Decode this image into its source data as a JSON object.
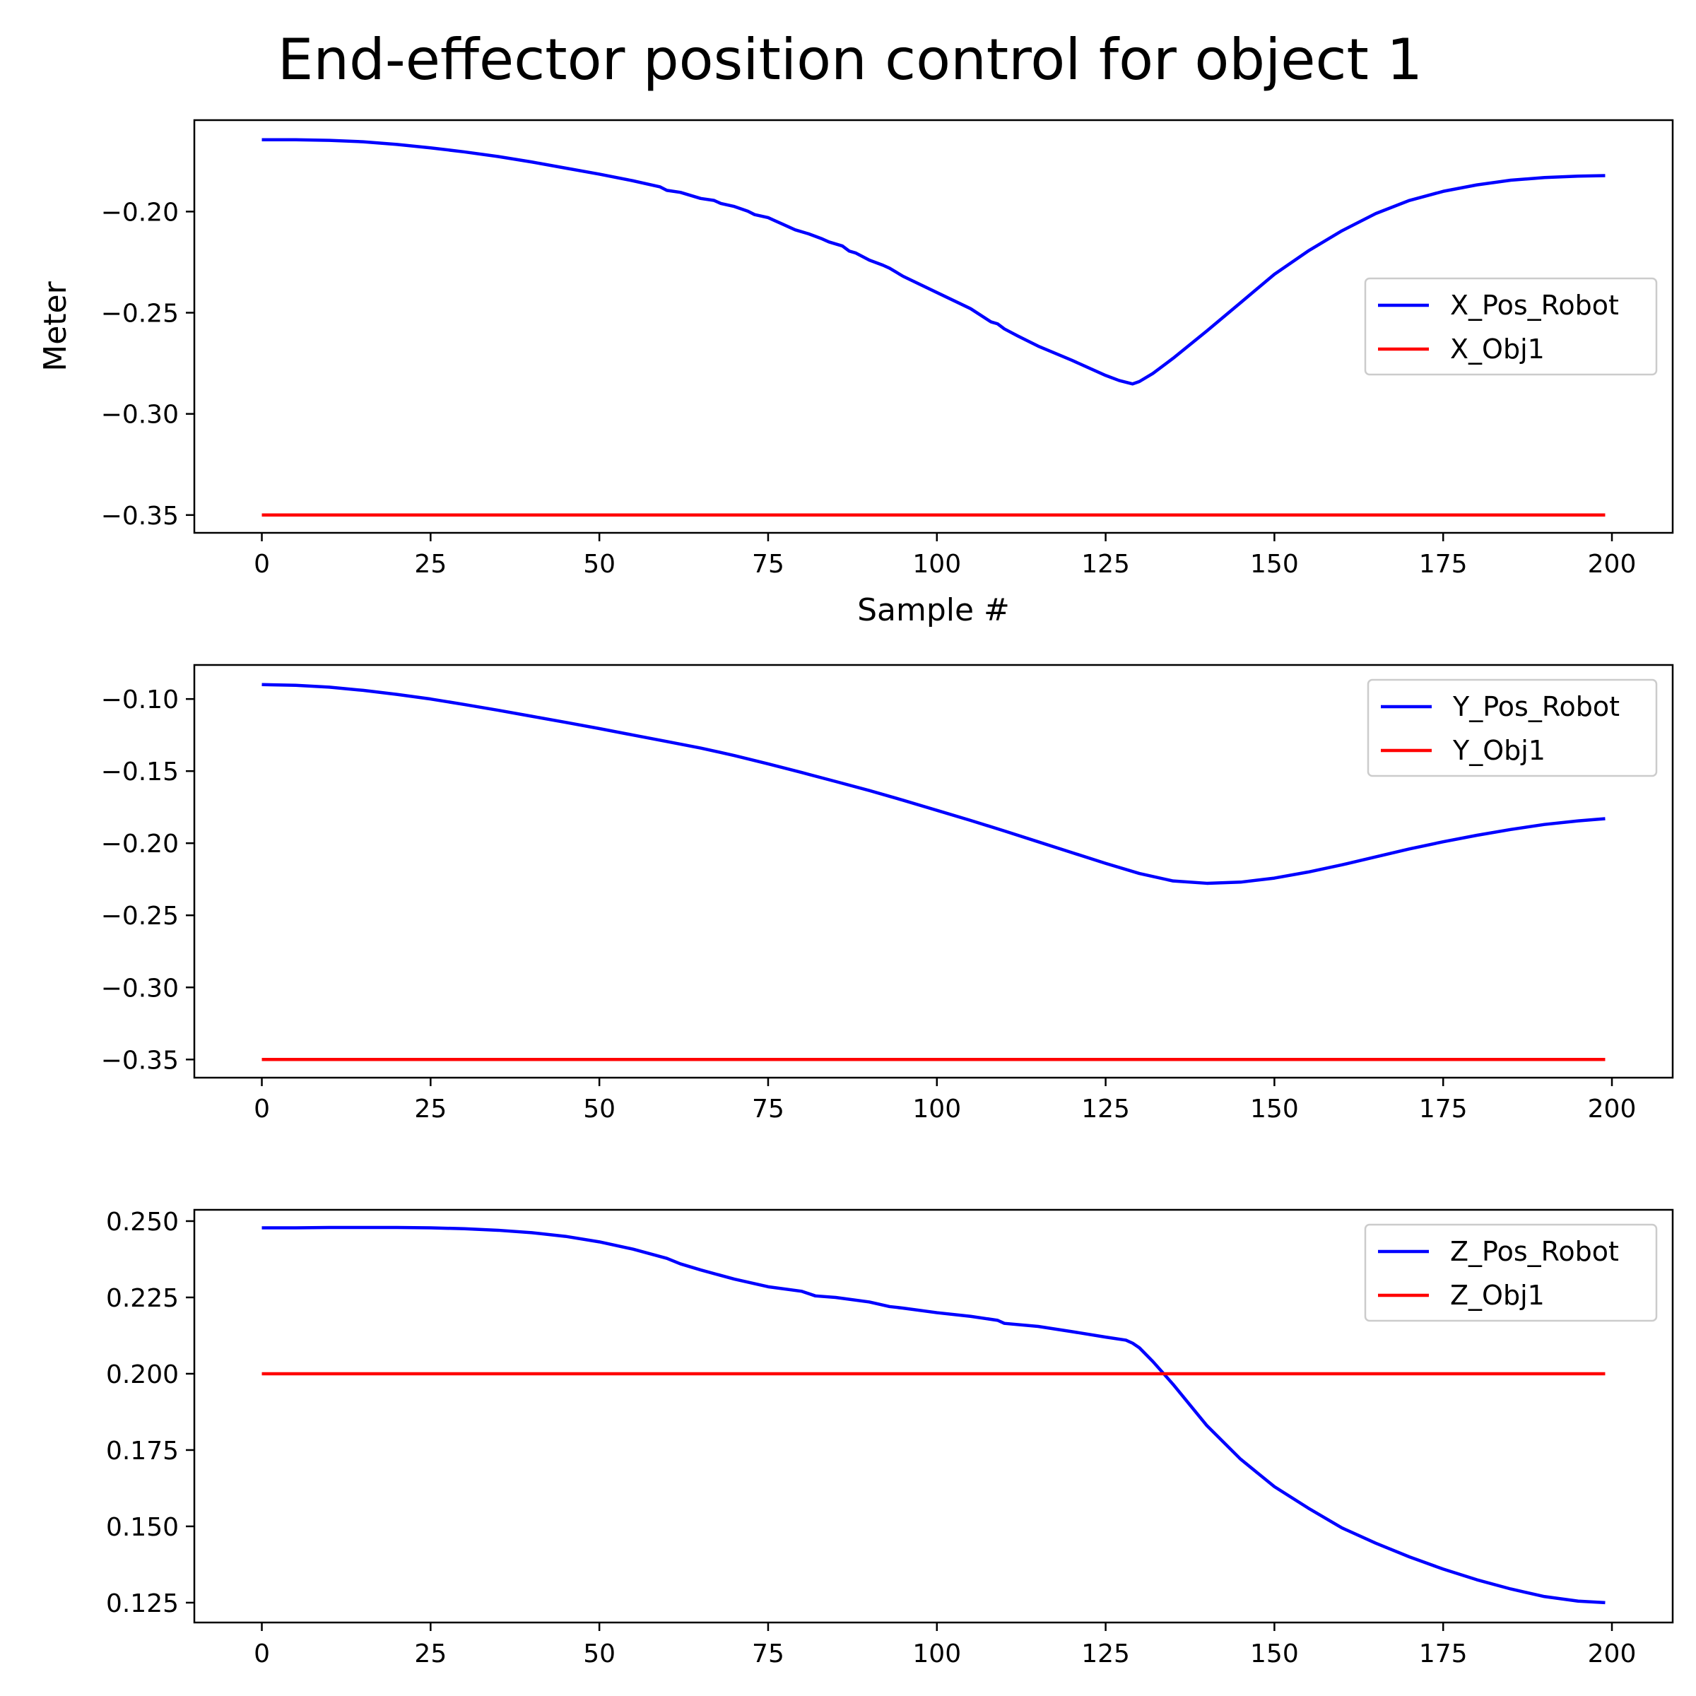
{
  "chart_data": {
    "title": "End-effector position control for object 1",
    "type": "line",
    "subplots": [
      {
        "type": "line",
        "xlabel": "Sample #",
        "ylabel": "Meter",
        "xlim": [
          -10,
          209
        ],
        "ylim": [
          -0.3588,
          -0.1548
        ],
        "xticks": [
          0,
          25,
          50,
          75,
          100,
          125,
          150,
          175,
          200
        ],
        "yticks": [
          -0.2,
          -0.25,
          -0.3,
          -0.35
        ],
        "ytick_labels": [
          "−0.20",
          "−0.25",
          "−0.30",
          "−0.35"
        ],
        "legend_position": "center-right",
        "series": [
          {
            "name": "X_Pos_Robot",
            "color": "#0000ff",
            "x": [
              0,
              5,
              10,
              15,
              20,
              25,
              30,
              35,
              40,
              45,
              50,
              55,
              59,
              60,
              62,
              64,
              65,
              67,
              68,
              70,
              72,
              73,
              75,
              76,
              77,
              79,
              81,
              83,
              84,
              86,
              87,
              88,
              90,
              92,
              93,
              95,
              100,
              105,
              108,
              109,
              110,
              112,
              115,
              120,
              125,
              127,
              129,
              130,
              132,
              135,
              140,
              145,
              150,
              155,
              160,
              165,
              170,
              175,
              180,
              185,
              190,
              195,
              199
            ],
            "y": [
              -0.1645,
              -0.1645,
              -0.1648,
              -0.1655,
              -0.1668,
              -0.1685,
              -0.1705,
              -0.1728,
              -0.1755,
              -0.1785,
              -0.1815,
              -0.1848,
              -0.1878,
              -0.1895,
              -0.1905,
              -0.1925,
              -0.1935,
              -0.1945,
              -0.196,
              -0.1975,
              -0.1998,
              -0.2015,
              -0.203,
              -0.2045,
              -0.206,
              -0.209,
              -0.211,
              -0.2135,
              -0.215,
              -0.217,
              -0.2195,
              -0.2205,
              -0.224,
              -0.2265,
              -0.228,
              -0.232,
              -0.24,
              -0.248,
              -0.2545,
              -0.2555,
              -0.258,
              -0.2615,
              -0.2665,
              -0.2735,
              -0.281,
              -0.2835,
              -0.2852,
              -0.284,
              -0.28,
              -0.2725,
              -0.259,
              -0.245,
              -0.231,
              -0.2195,
              -0.2095,
              -0.201,
              -0.1945,
              -0.19,
              -0.1868,
              -0.1845,
              -0.1832,
              -0.1825,
              -0.1822
            ]
          },
          {
            "name": "X_Obj1",
            "color": "#ff0000",
            "x": [
              0,
              199
            ],
            "y": [
              -0.35,
              -0.35
            ]
          }
        ]
      },
      {
        "type": "line",
        "xlabel": "",
        "ylabel": "",
        "xlim": [
          -10,
          209
        ],
        "ylim": [
          -0.3626,
          -0.0764
        ],
        "xticks": [
          0,
          25,
          50,
          75,
          100,
          125,
          150,
          175,
          200
        ],
        "yticks": [
          -0.1,
          -0.15,
          -0.2,
          -0.25,
          -0.3,
          -0.35
        ],
        "ytick_labels": [
          "−0.10",
          "−0.15",
          "−0.20",
          "−0.25",
          "−0.30",
          "−0.35"
        ],
        "legend_position": "upper-right",
        "series": [
          {
            "name": "Y_Pos_Robot",
            "color": "#0000ff",
            "x": [
              0,
              5,
              10,
              15,
              20,
              25,
              30,
              35,
              40,
              45,
              50,
              55,
              60,
              65,
              70,
              75,
              80,
              85,
              90,
              95,
              100,
              105,
              110,
              115,
              120,
              125,
              130,
              135,
              140,
              145,
              150,
              155,
              160,
              165,
              170,
              175,
              180,
              185,
              190,
              195,
              199
            ],
            "y": [
              -0.09,
              -0.0905,
              -0.0918,
              -0.094,
              -0.0968,
              -0.1,
              -0.1038,
              -0.1078,
              -0.112,
              -0.1162,
              -0.1205,
              -0.125,
              -0.1295,
              -0.134,
              -0.1392,
              -0.145,
              -0.151,
              -0.1572,
              -0.1635,
              -0.1702,
              -0.1772,
              -0.1842,
              -0.1915,
              -0.199,
              -0.2065,
              -0.214,
              -0.221,
              -0.2262,
              -0.2278,
              -0.227,
              -0.2242,
              -0.22,
              -0.215,
              -0.2095,
              -0.204,
              -0.199,
              -0.1945,
              -0.1905,
              -0.187,
              -0.1845,
              -0.183
            ]
          },
          {
            "name": "Y_Obj1",
            "color": "#ff0000",
            "x": [
              0,
              199
            ],
            "y": [
              -0.35,
              -0.35
            ]
          }
        ]
      },
      {
        "type": "line",
        "xlabel": "",
        "ylabel": "",
        "xlim": [
          -10,
          209
        ],
        "ylim": [
          0.1185,
          0.2537
        ],
        "xticks": [
          0,
          25,
          50,
          75,
          100,
          125,
          150,
          175,
          200
        ],
        "yticks": [
          0.25,
          0.225,
          0.2,
          0.175,
          0.15,
          0.125
        ],
        "ytick_labels": [
          "0.250",
          "0.225",
          "0.200",
          "0.175",
          "0.150",
          "0.125"
        ],
        "legend_position": "upper-right",
        "series": [
          {
            "name": "Z_Pos_Robot",
            "color": "#0000ff",
            "x": [
              0,
              5,
              10,
              15,
              20,
              25,
              30,
              35,
              40,
              45,
              50,
              55,
              60,
              62,
              65,
              70,
              75,
              80,
              82,
              85,
              90,
              93,
              95,
              100,
              105,
              109,
              110,
              115,
              120,
              125,
              128,
              129,
              130,
              132,
              135,
              140,
              145,
              150,
              155,
              160,
              165,
              170,
              175,
              180,
              185,
              190,
              195,
              199
            ],
            "y": [
              0.2478,
              0.2478,
              0.2479,
              0.2479,
              0.2479,
              0.2478,
              0.2475,
              0.247,
              0.2462,
              0.245,
              0.2432,
              0.2408,
              0.2378,
              0.236,
              0.234,
              0.231,
              0.2285,
              0.227,
              0.2255,
              0.225,
              0.2235,
              0.222,
              0.2215,
              0.22,
              0.2188,
              0.2175,
              0.2165,
              0.2155,
              0.2138,
              0.212,
              0.211,
              0.21,
              0.2085,
              0.204,
              0.1965,
              0.183,
              0.172,
              0.163,
              0.156,
              0.1495,
              0.1445,
              0.14,
              0.136,
              0.1325,
              0.1295,
              0.127,
              0.1255,
              0.125
            ]
          },
          {
            "name": "Z_Obj1",
            "color": "#ff0000",
            "x": [
              0,
              199
            ],
            "y": [
              0.2,
              0.2
            ]
          }
        ]
      }
    ]
  }
}
